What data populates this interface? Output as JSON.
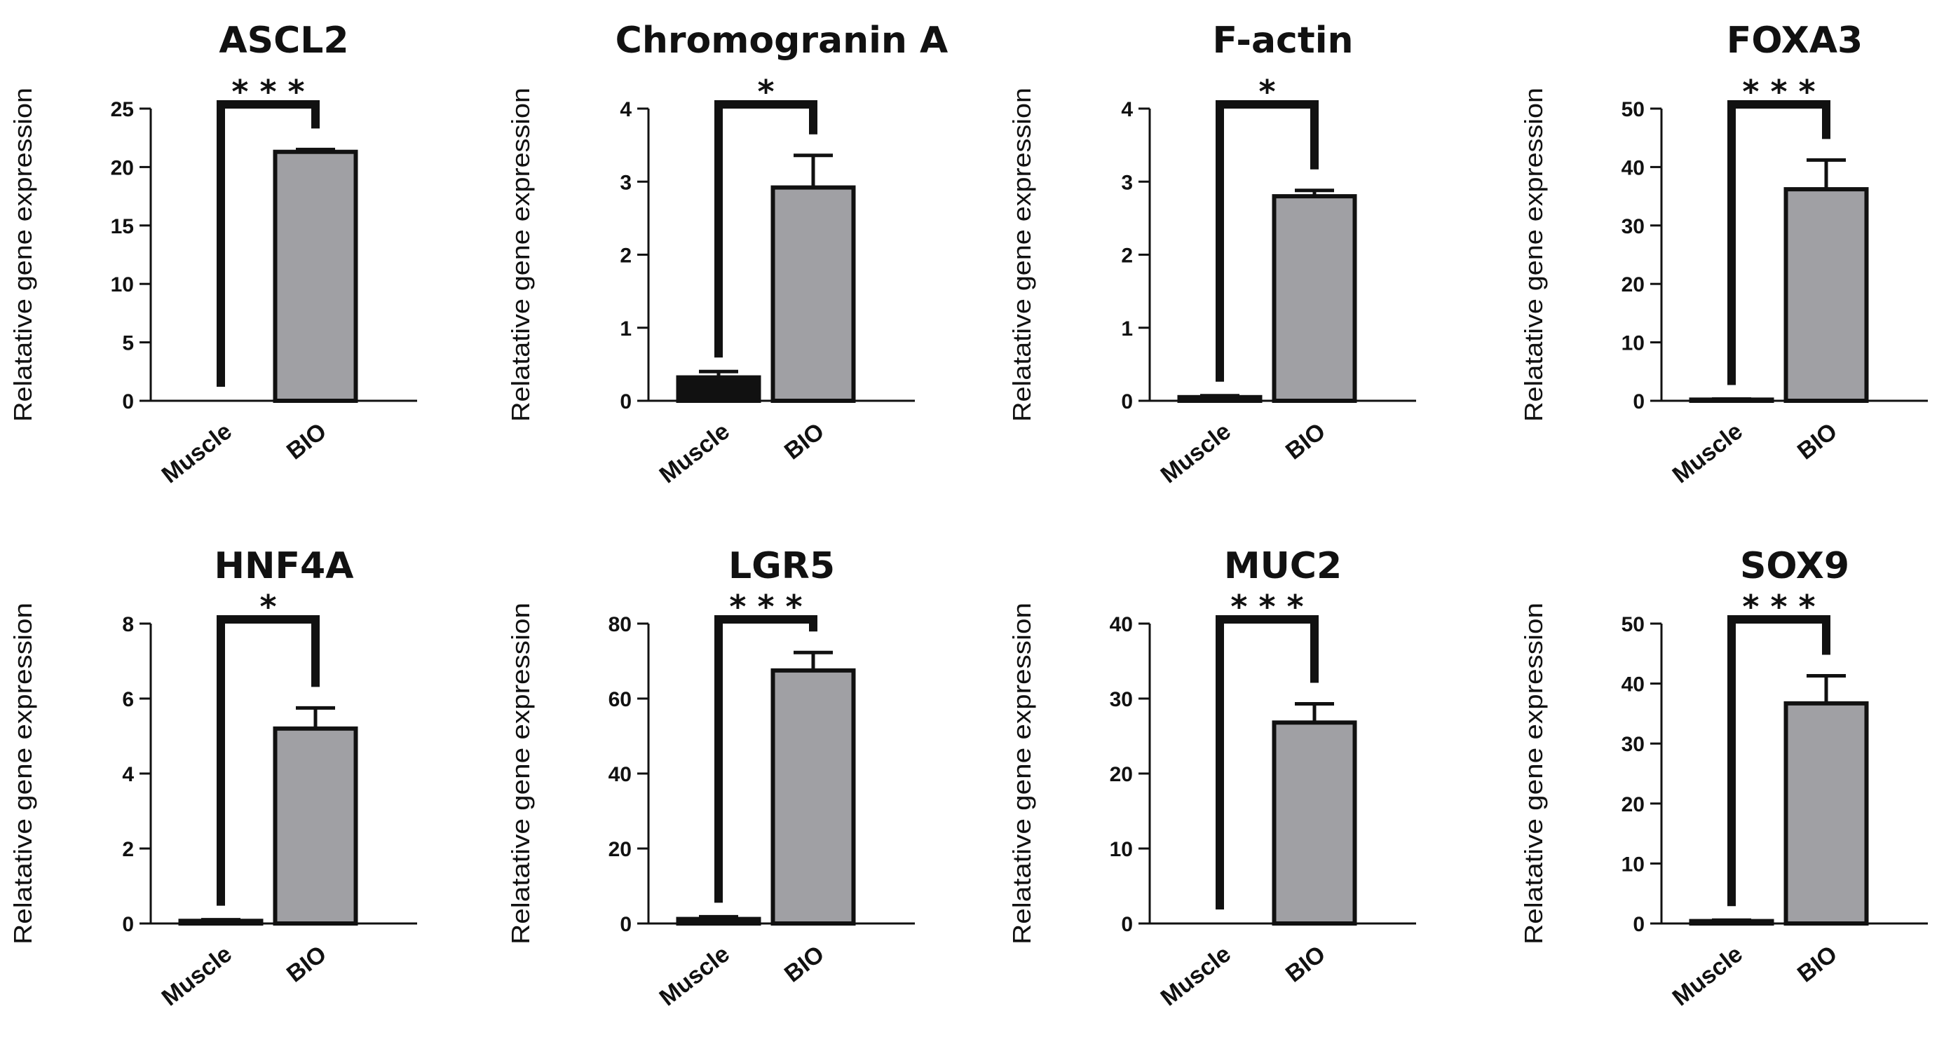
{
  "chart_data": [
    {
      "type": "bar",
      "title": "ASCL2",
      "ylabel": "Relatative gene expression",
      "categories": [
        "Muscle",
        "BIO"
      ],
      "values": [
        0,
        21.3
      ],
      "errors": [
        0,
        0.2
      ],
      "colors": [
        "#111111",
        "#a0a0a4"
      ],
      "yticks": [
        0,
        5,
        10,
        15,
        20,
        25
      ],
      "ylim": [
        0,
        25
      ],
      "significance": "* * *"
    },
    {
      "type": "bar",
      "title": "Chromogranin A",
      "ylabel": "Relatative gene expression",
      "categories": [
        "Muscle",
        "BIO"
      ],
      "values": [
        0.32,
        2.92
      ],
      "errors": [
        0.08,
        0.44
      ],
      "colors": [
        "#111111",
        "#a0a0a4"
      ],
      "yticks": [
        0,
        1,
        2,
        3,
        4
      ],
      "ylim": [
        0,
        4
      ],
      "significance": "*"
    },
    {
      "type": "bar",
      "title": "F-actin",
      "ylabel": "Relatative gene expression",
      "categories": [
        "Muscle",
        "BIO"
      ],
      "values": [
        0.05,
        2.8
      ],
      "errors": [
        0.02,
        0.08
      ],
      "colors": [
        "#111111",
        "#a0a0a4"
      ],
      "yticks": [
        0,
        1,
        2,
        3,
        4
      ],
      "ylim": [
        0,
        4
      ],
      "significance": "*"
    },
    {
      "type": "bar",
      "title": "FOXA3",
      "ylabel": "Relatative gene expression",
      "categories": [
        "Muscle",
        "BIO"
      ],
      "values": [
        0.2,
        36.2
      ],
      "errors": [
        0.1,
        5
      ],
      "colors": [
        "#111111",
        "#a0a0a4"
      ],
      "yticks": [
        0,
        10,
        20,
        30,
        40,
        50
      ],
      "ylim": [
        0,
        50
      ],
      "significance": "* * *"
    },
    {
      "type": "bar",
      "title": "HNF4A",
      "ylabel": "Relatative gene expression",
      "categories": [
        "Muscle",
        "BIO"
      ],
      "values": [
        0.07,
        5.2
      ],
      "errors": [
        0.03,
        0.55
      ],
      "colors": [
        "#111111",
        "#a0a0a4"
      ],
      "yticks": [
        0,
        2,
        4,
        6,
        8
      ],
      "ylim": [
        0,
        8
      ],
      "significance": "*"
    },
    {
      "type": "bar",
      "title": "LGR5",
      "ylabel": "Relatative gene expression",
      "categories": [
        "Muscle",
        "BIO"
      ],
      "values": [
        1.2,
        67.5
      ],
      "errors": [
        0.6,
        4.8
      ],
      "colors": [
        "#111111",
        "#a0a0a4"
      ],
      "yticks": [
        0,
        20,
        40,
        60,
        80
      ],
      "ylim": [
        0,
        80
      ],
      "significance": "* * *"
    },
    {
      "type": "bar",
      "title": "MUC2",
      "ylabel": "Relatative gene expression",
      "categories": [
        "Muscle",
        "BIO"
      ],
      "values": [
        0,
        26.8
      ],
      "errors": [
        0,
        2.5
      ],
      "colors": [
        "#111111",
        "#a0a0a4"
      ],
      "yticks": [
        0,
        10,
        20,
        30,
        40
      ],
      "ylim": [
        0,
        40
      ],
      "significance": "* * *"
    },
    {
      "type": "bar",
      "title": "SOX9",
      "ylabel": "Relatative gene expression",
      "categories": [
        "Muscle",
        "BIO"
      ],
      "values": [
        0.4,
        36.7
      ],
      "errors": [
        0.15,
        4.6
      ],
      "colors": [
        "#111111",
        "#a0a0a4"
      ],
      "yticks": [
        0,
        10,
        20,
        30,
        40,
        50
      ],
      "ylim": [
        0,
        50
      ],
      "significance": "* * *"
    }
  ]
}
